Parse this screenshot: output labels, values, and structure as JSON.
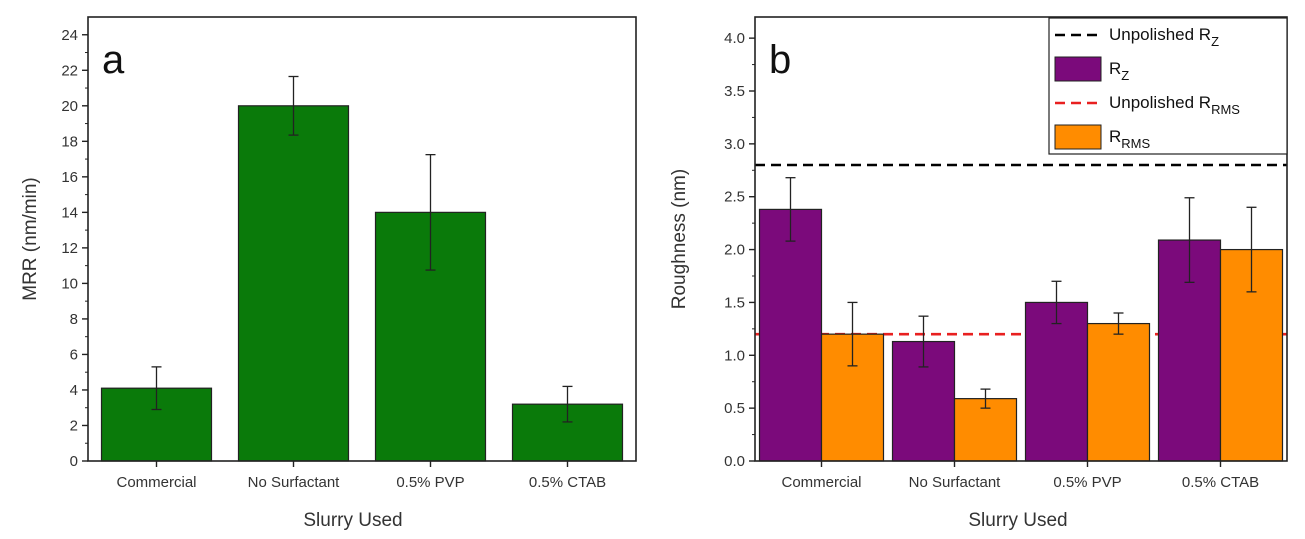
{
  "chart_data": [
    {
      "panel": "a",
      "type": "bar",
      "xlabel": "Slurry Used",
      "ylabel": "MRR (nm/min)",
      "ylim": [
        0,
        25
      ],
      "yticks": [
        0,
        2,
        4,
        6,
        8,
        10,
        12,
        14,
        16,
        18,
        20,
        22,
        24
      ],
      "categories": [
        "Commercial",
        "No Surfactant",
        "0.5% PVP",
        "0.5% CTAB"
      ],
      "series": [
        {
          "values": [
            4.1,
            20.0,
            14.0,
            3.2
          ],
          "errors": [
            1.2,
            1.65,
            3.25,
            1.0
          ],
          "color": "#0a7a0a"
        }
      ],
      "grid": false
    },
    {
      "panel": "b",
      "type": "bar",
      "xlabel": "Slurry Used",
      "ylabel": "Roughness (nm)",
      "ylim": [
        0,
        4.2
      ],
      "yticks": [
        "0.0",
        "0.5",
        "1.0",
        "1.5",
        "2.0",
        "2.5",
        "3.0",
        "3.5",
        "4.0"
      ],
      "categories": [
        "Commercial",
        "No Surfactant",
        "0.5% PVP",
        "0.5% CTAB"
      ],
      "series": [
        {
          "name_main": "R",
          "name_sub": "Z",
          "values": [
            2.38,
            1.13,
            1.5,
            2.09
          ],
          "errors": [
            0.3,
            0.24,
            0.2,
            0.4
          ],
          "color": "#7b0a7b"
        },
        {
          "name_main": "R",
          "name_sub": "RMS",
          "values": [
            1.2,
            0.59,
            1.3,
            2.0
          ],
          "errors": [
            0.3,
            0.09,
            0.1,
            0.4
          ],
          "color": "#ff8c00"
        }
      ],
      "reference_lines": [
        {
          "name_main": "Unpolished R",
          "name_sub": "Z",
          "value": 2.8,
          "color": "#000000",
          "style": "dashed"
        },
        {
          "name_main": "Unpolished R",
          "name_sub": "RMS",
          "value": 1.2,
          "color": "#e82020",
          "style": "dashed"
        }
      ],
      "legend_position": "top-right",
      "grid": false
    }
  ]
}
